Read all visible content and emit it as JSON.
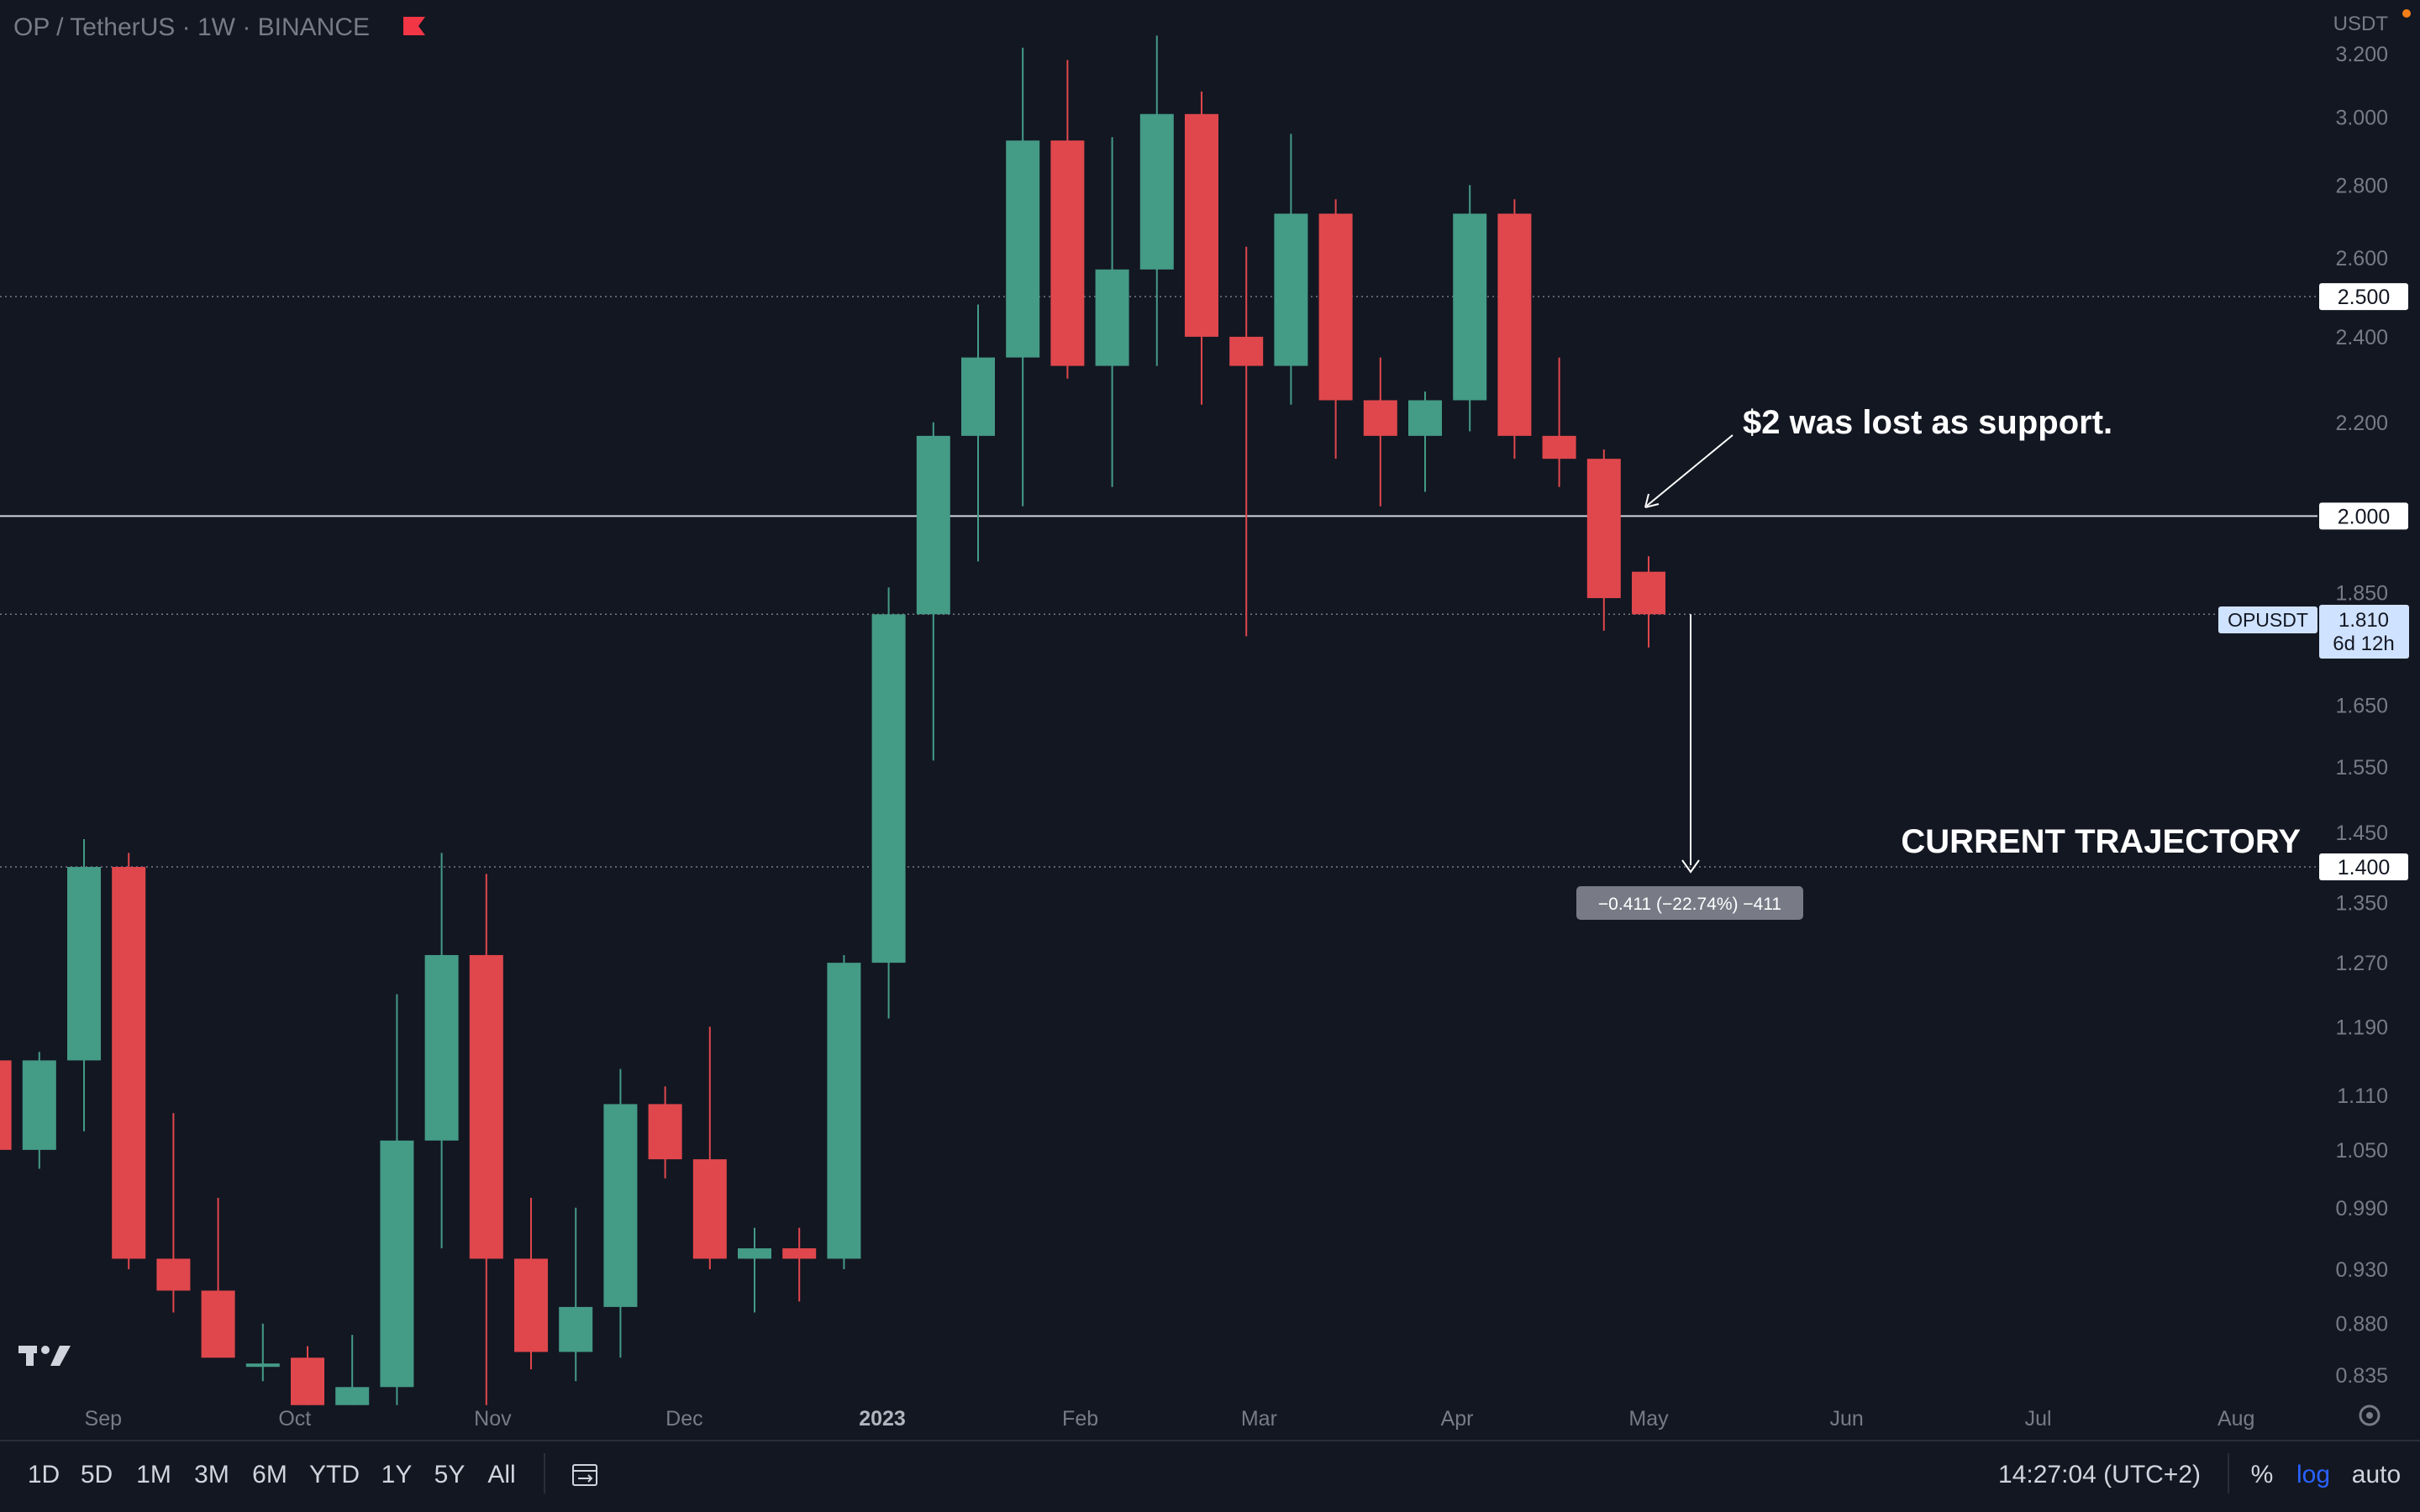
{
  "header": {
    "symbol_title": "OP / TetherUS · 1W · BINANCE",
    "currency": "USDT",
    "flag_color": "#f23645"
  },
  "colors": {
    "background": "#131722",
    "up": "#449b86",
    "down": "#e0474c",
    "text": "#787b86",
    "annotation": "#ffffff",
    "last_price_label": "#cfe2ff"
  },
  "chart_data": {
    "type": "candlestick",
    "timeframe": "1W",
    "yscale": "log",
    "ylim": [
      0.805,
      3.38
    ],
    "x_ticks": [
      "Sep",
      "Oct",
      "Nov",
      "Dec",
      "2023",
      "Feb",
      "Mar",
      "Apr",
      "May",
      "Jun",
      "Jul",
      "Aug"
    ],
    "y_ticks": [
      "3.200",
      "3.000",
      "2.800",
      "2.600",
      "2.400",
      "2.200",
      "1.850",
      "1.650",
      "1.550",
      "1.450",
      "1.350",
      "1.270",
      "1.190",
      "1.110",
      "1.050",
      "0.990",
      "0.930",
      "0.880",
      "0.835"
    ],
    "candles": [
      {
        "week": "2022-08-15",
        "o": 1.15,
        "h": 1.2,
        "l": 1.05,
        "c": 1.05
      },
      {
        "week": "2022-08-22",
        "o": 1.05,
        "h": 1.16,
        "l": 1.03,
        "c": 1.15
      },
      {
        "week": "2022-08-29",
        "o": 1.15,
        "h": 1.44,
        "l": 1.07,
        "c": 1.4
      },
      {
        "week": "2022-09-05",
        "o": 1.4,
        "h": 1.42,
        "l": 0.93,
        "c": 0.94
      },
      {
        "week": "2022-09-12",
        "o": 0.94,
        "h": 1.09,
        "l": 0.89,
        "c": 0.91
      },
      {
        "week": "2022-09-19",
        "o": 0.91,
        "h": 1.0,
        "l": 0.86,
        "c": 0.85
      },
      {
        "week": "2022-09-26",
        "o": 0.845,
        "h": 0.88,
        "l": 0.83,
        "c": 0.845
      },
      {
        "week": "2022-10-03",
        "o": 0.85,
        "h": 0.86,
        "l": 0.81,
        "c": 0.81
      },
      {
        "week": "2022-10-10",
        "o": 0.81,
        "h": 0.87,
        "l": 0.81,
        "c": 0.825
      },
      {
        "week": "2022-10-17",
        "o": 0.825,
        "h": 1.23,
        "l": 0.81,
        "c": 1.06
      },
      {
        "week": "2022-10-24",
        "o": 1.06,
        "h": 1.42,
        "l": 0.95,
        "c": 1.28
      },
      {
        "week": "2022-10-31",
        "o": 1.28,
        "h": 1.39,
        "l": 0.81,
        "c": 0.94
      },
      {
        "week": "2022-11-07",
        "o": 0.94,
        "h": 1.0,
        "l": 0.84,
        "c": 0.855
      },
      {
        "week": "2022-11-14",
        "o": 0.855,
        "h": 0.99,
        "l": 0.83,
        "c": 0.895
      },
      {
        "week": "2022-11-21",
        "o": 0.895,
        "h": 1.14,
        "l": 0.85,
        "c": 1.1
      },
      {
        "week": "2022-11-28",
        "o": 1.1,
        "h": 1.12,
        "l": 1.02,
        "c": 1.04
      },
      {
        "week": "2022-12-05",
        "o": 1.04,
        "h": 1.19,
        "l": 0.93,
        "c": 0.94
      },
      {
        "week": "2022-12-12",
        "o": 0.94,
        "h": 0.97,
        "l": 0.89,
        "c": 0.95
      },
      {
        "week": "2022-12-19",
        "o": 0.95,
        "h": 0.97,
        "l": 0.9,
        "c": 0.94
      },
      {
        "week": "2022-12-26",
        "o": 0.94,
        "h": 1.28,
        "l": 0.93,
        "c": 1.27
      },
      {
        "week": "2023-01-02",
        "o": 1.27,
        "h": 1.86,
        "l": 1.2,
        "c": 1.81
      },
      {
        "week": "2023-01-09",
        "o": 1.81,
        "h": 2.2,
        "l": 1.56,
        "c": 2.17
      },
      {
        "week": "2023-01-16",
        "o": 2.17,
        "h": 2.48,
        "l": 1.91,
        "c": 2.35
      },
      {
        "week": "2023-01-23",
        "o": 2.35,
        "h": 3.22,
        "l": 2.02,
        "c": 2.93
      },
      {
        "week": "2023-01-30",
        "o": 2.93,
        "h": 3.18,
        "l": 2.3,
        "c": 2.33
      },
      {
        "week": "2023-02-06",
        "o": 2.33,
        "h": 2.94,
        "l": 2.06,
        "c": 2.57
      },
      {
        "week": "2023-02-13",
        "o": 2.57,
        "h": 3.26,
        "l": 2.33,
        "c": 3.01
      },
      {
        "week": "2023-02-20",
        "o": 3.01,
        "h": 3.08,
        "l": 2.24,
        "c": 2.4
      },
      {
        "week": "2023-02-27",
        "o": 2.4,
        "h": 2.63,
        "l": 1.77,
        "c": 2.33
      },
      {
        "week": "2023-03-06",
        "o": 2.33,
        "h": 2.95,
        "l": 2.24,
        "c": 2.72
      },
      {
        "week": "2023-03-13",
        "o": 2.72,
        "h": 2.76,
        "l": 2.12,
        "c": 2.25
      },
      {
        "week": "2023-03-20",
        "o": 2.25,
        "h": 2.35,
        "l": 2.02,
        "c": 2.17
      },
      {
        "week": "2023-03-27",
        "o": 2.17,
        "h": 2.27,
        "l": 2.05,
        "c": 2.25
      },
      {
        "week": "2023-04-03",
        "o": 2.25,
        "h": 2.8,
        "l": 2.18,
        "c": 2.72
      },
      {
        "week": "2023-04-10",
        "o": 2.72,
        "h": 2.76,
        "l": 2.12,
        "c": 2.17
      },
      {
        "week": "2023-04-17",
        "o": 2.17,
        "h": 2.35,
        "l": 2.06,
        "c": 2.12
      },
      {
        "week": "2023-04-24",
        "o": 2.12,
        "h": 2.14,
        "l": 1.78,
        "c": 1.84
      },
      {
        "week": "2023-05-01",
        "o": 1.89,
        "h": 1.92,
        "l": 1.75,
        "c": 1.81
      }
    ],
    "horizontal_levels": [
      {
        "price": 2.5,
        "label": "2.500",
        "style": "dotted"
      },
      {
        "price": 2.0,
        "label": "2.000",
        "style": "solid"
      },
      {
        "price": 1.81,
        "label": "1.810",
        "style": "dotted"
      },
      {
        "price": 1.4,
        "label": "1.400",
        "style": "dotted"
      }
    ],
    "last_price": {
      "symbol": "OPUSDT",
      "price": "1.810",
      "countdown": "6d 12h"
    },
    "measure": {
      "from": 1.81,
      "to": 1.4,
      "label": "−0.411 (−22.74%) −411"
    },
    "annotations": [
      {
        "text": "$2 was lost as support."
      },
      {
        "text": "CURRENT TRAJECTORY"
      }
    ]
  },
  "bottom_bar": {
    "ranges": [
      "1D",
      "5D",
      "1M",
      "3M",
      "6M",
      "YTD",
      "1Y",
      "5Y",
      "All"
    ],
    "clock": "14:27:04 (UTC+2)",
    "percent": "%",
    "log": "log",
    "auto": "auto"
  }
}
